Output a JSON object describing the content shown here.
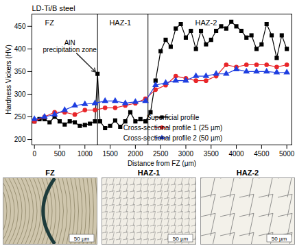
{
  "chart_data": {
    "type": "line",
    "title": "LD-Ti/B steel",
    "x_label": "Distance from FZ (μm)",
    "y_label": "Hardness Vickers (HV)",
    "xlim": [
      -50,
      5100
    ],
    "xticks": [
      0,
      500,
      1000,
      1500,
      2000,
      2500,
      3000,
      3500,
      4000,
      4500,
      5000
    ],
    "ylim": [
      188,
      477
    ],
    "yticks": [
      200,
      250,
      300,
      350,
      400,
      450
    ],
    "legend": "lower right",
    "boundaries": [
      1250,
      2250
    ],
    "regions": [
      {
        "label": "FZ",
        "x": 300
      },
      {
        "label": "HAZ-1",
        "x": 1700
      },
      {
        "label": "HAZ-2",
        "x": 3400
      }
    ],
    "annotations": [
      {
        "text": "AlN\nprecipitation zone",
        "x": 1250,
        "y": 345,
        "text_x": 700,
        "text_y": 405
      }
    ],
    "series": [
      {
        "name": "Superficial profile",
        "color": "#000000",
        "marker": "square",
        "x": [
          0,
          100,
          200,
          300,
          400,
          500,
          600,
          700,
          800,
          900,
          1000,
          1100,
          1200,
          1250,
          1300,
          1400,
          1500,
          1600,
          1700,
          1800,
          1900,
          2000,
          2100,
          2200,
          2300,
          2400,
          2500,
          2600,
          2700,
          2800,
          2900,
          3000,
          3100,
          3200,
          3300,
          3400,
          3500,
          3600,
          3700,
          3800,
          3900,
          4000,
          4100,
          4200,
          4300,
          4400,
          4500,
          4600,
          4700,
          4800,
          4900,
          5000
        ],
        "values": [
          240,
          245,
          245,
          238,
          250,
          240,
          233,
          240,
          238,
          230,
          232,
          235,
          240,
          345,
          240,
          225,
          230,
          242,
          228,
          240,
          260,
          240,
          245,
          240,
          260,
          330,
          395,
          420,
          405,
          445,
          455,
          425,
          440,
          400,
          440,
          410,
          420,
          440,
          450,
          445,
          460,
          450,
          440,
          425,
          430,
          400,
          410,
          455,
          430,
          380,
          430,
          400
        ]
      },
      {
        "name": "Cross-sectional profile 1 (25 µm)",
        "color": "#e8262a",
        "marker": "circle",
        "x": [
          0,
          200,
          400,
          600,
          800,
          1000,
          1200,
          1400,
          1600,
          1800,
          2000,
          2200,
          2400,
          2600,
          2800,
          3000,
          3200,
          3400,
          3600,
          3800,
          4000,
          4200,
          4400,
          4600,
          4800,
          5000
        ],
        "values": [
          240,
          250,
          260,
          260,
          255,
          265,
          265,
          270,
          270,
          275,
          280,
          290,
          310,
          320,
          340,
          335,
          330,
          330,
          340,
          365,
          360,
          365,
          365,
          365,
          360,
          365
        ]
      },
      {
        "name": "Cross-sectional profile 2 (50 µm)",
        "color": "#1f3fe0",
        "marker": "triangle",
        "x": [
          0,
          200,
          400,
          600,
          800,
          1000,
          1200,
          1400,
          1600,
          1800,
          2000,
          2200,
          2400,
          2600,
          2800,
          3000,
          3200,
          3400,
          3600,
          3800,
          4000,
          4200,
          4400,
          4600,
          4800,
          5000
        ],
        "values": [
          245,
          250,
          255,
          265,
          275,
          278,
          280,
          285,
          285,
          280,
          283,
          285,
          320,
          325,
          330,
          330,
          340,
          340,
          345,
          345,
          355,
          350,
          350,
          350,
          348,
          348
        ]
      }
    ]
  },
  "micrographs": [
    {
      "label": "FZ",
      "scale_bar": "50 µm"
    },
    {
      "label": "HAZ-1",
      "scale_bar": "50 µm"
    },
    {
      "label": "HAZ-2",
      "scale_bar": "50 µm"
    }
  ]
}
